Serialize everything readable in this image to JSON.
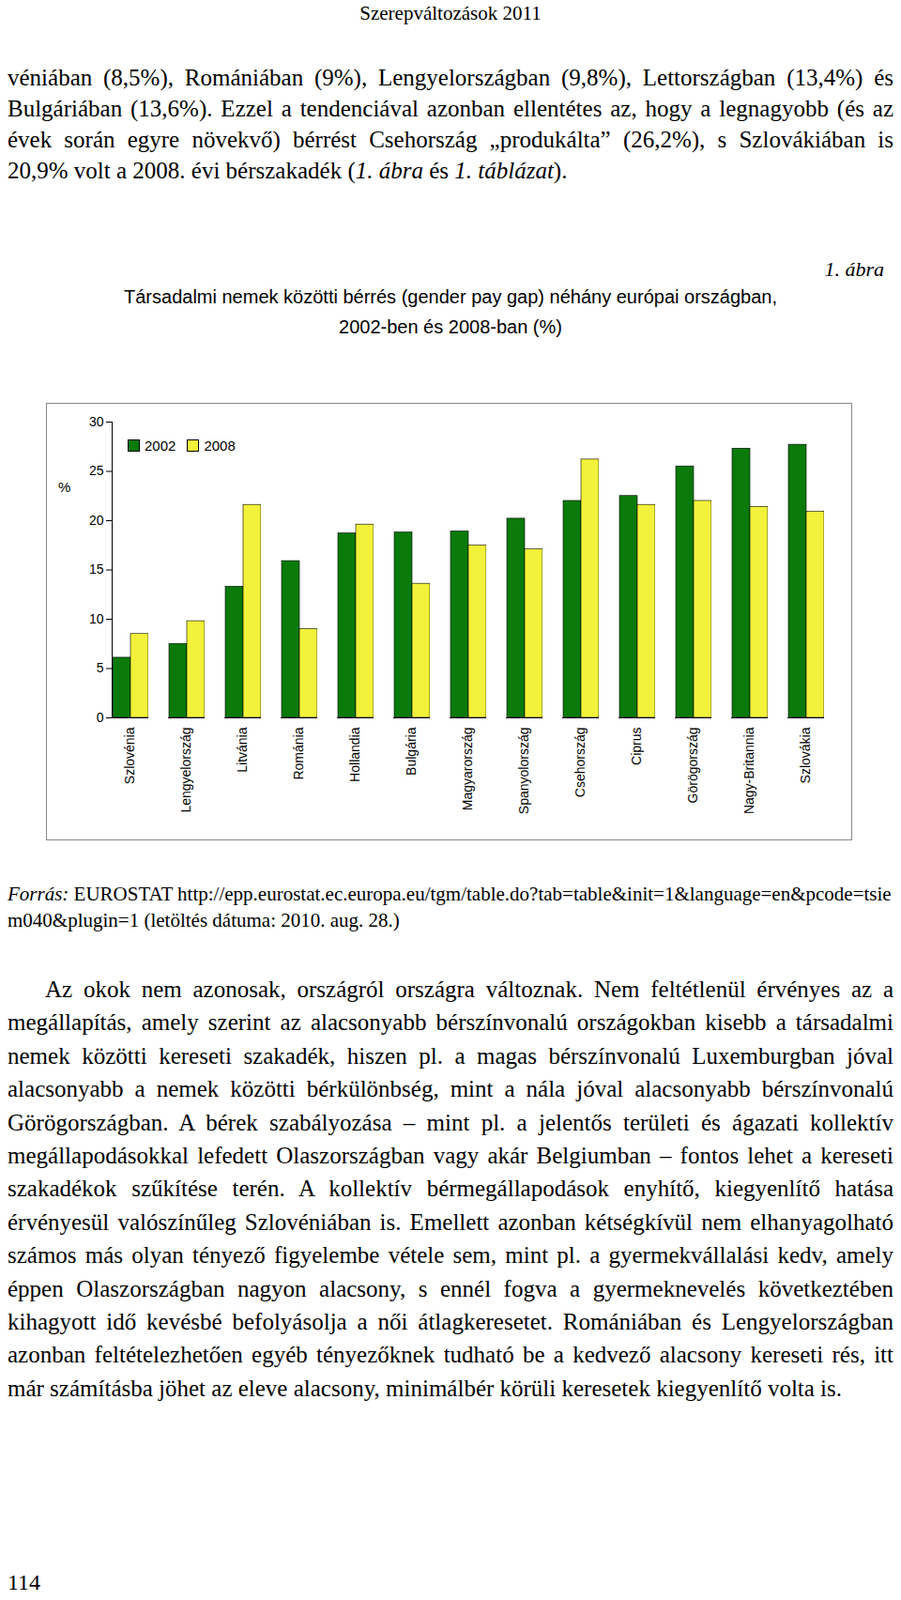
{
  "document": {
    "header": "Szerepváltozások 2011",
    "intro": [
      {
        "text": "véniában (8,5%), Romániában (9%), Lengyelországban (9,8%), Lettországban (13,4%) és Bulgáriában (13,6%). Ezzel a tendenciával azonban ellentétes az, hogy a legnagyobb (és az évek során egyre növekvő) bérrést Csehország „produkálta” (26,2%), s Szlovákiában is 20,9% volt a 2008. évi bérszakadék (",
        "italic": false
      },
      {
        "text": "1. ábra",
        "italic": true
      },
      {
        "text": " és ",
        "italic": false
      },
      {
        "text": "1. táblázat",
        "italic": true
      },
      {
        "text": ").",
        "italic": false
      }
    ],
    "figure_label": "1. ábra",
    "source": [
      {
        "text": "Forrás:",
        "italic": true
      },
      {
        "text": " EUROSTAT http://epp.eurostat.ec.europa.eu/tgm/table.do?tab=table&init=1&language=en&pcode=tsiem040&plugin=1 (letöltés dátuma: 2010. aug. 28.)",
        "italic": false
      }
    ],
    "body": "Az okok nem azonosak, országról országra változnak. Nem feltétlenül érvényes az a megállapítás, amely szerint az alacsonyabb bérszínvonalú országokban kisebb a társadalmi nemek közötti kereseti szakadék, hiszen pl. a magas bérszínvonalú Luxemburgban jóval alacsonyabb a nemek közötti bérkülönbség, mint a nála jóval alacsonyabb bérszínvonalú Görögországban. A bérek szabályozása – mint pl. a jelentős területi és ágazati kollektív megállapodásokkal lefedett Olaszországban vagy akár Belgiumban – fontos lehet a kereseti szakadékok szűkítése terén. A kollektív bérmegállapodások enyhítő, kiegyenlítő hatása érvényesül valószínűleg Szlovéniában is. Emellett azonban kétségkívül nem elhanyagolható számos más olyan tényező figyelembe vétele sem, mint pl. a gyermekvállalási kedv, amely éppen Olaszországban nagyon alacsony, s ennél fogva a gyermeknevelés következtében kihagyott idő kevésbé befolyásolja a női átlagkeresetet. Romániában és Lengyelországban azonban feltételezhetően egyéb tényezőknek tudható be a kedvező alacsony kereseti rés, itt már számításba jöhet az eleve alacsony, minimálbér körüli keresetek kiegyenlítő volta is.",
    "page_number": 114
  },
  "chart_data": {
    "type": "bar",
    "title": "Társadalmi nemek közötti bérrés (gender pay gap) néhány európai országban, 2002-ben és 2008-ban (%)",
    "y_label": "%",
    "categories": [
      "Szlovénia",
      "Lengyelország",
      "Litvánia",
      "Románia",
      "Hollandia",
      "Bulgária",
      "Magyarország",
      "Spanyolország",
      "Csehország",
      "Ciprus",
      "Görögország",
      "Nagy-Britannia",
      "Szlovákia"
    ],
    "series": [
      {
        "name": "2002",
        "color": "#0a7a0a",
        "values": [
          6.1,
          7.5,
          13.3,
          15.9,
          18.7,
          18.8,
          18.9,
          20.2,
          22.0,
          22.5,
          25.5,
          27.3,
          27.7
        ]
      },
      {
        "name": "2008",
        "color": "#f2f23a",
        "values": [
          8.5,
          9.8,
          21.6,
          9.0,
          19.6,
          13.6,
          17.5,
          17.1,
          26.2,
          21.6,
          22.0,
          21.4,
          20.9
        ]
      }
    ],
    "ylim": [
      0,
      30
    ],
    "yticks": [
      0,
      5,
      10,
      15,
      20,
      25,
      30
    ],
    "grid": false,
    "legend": "top-left"
  }
}
